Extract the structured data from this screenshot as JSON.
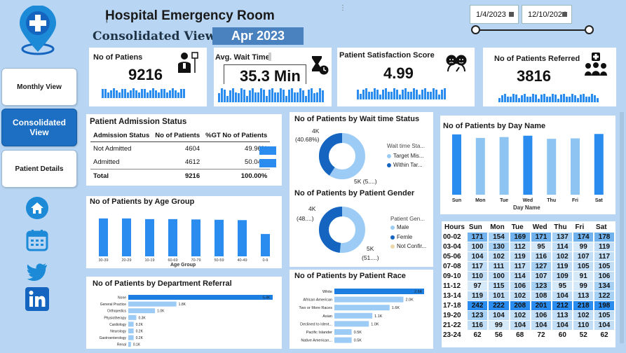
{
  "header": {
    "title": "Hospital Emergency Room",
    "subtitle": "Consolidated View",
    "month": "Apr 2023",
    "date_start": "1/4/2023",
    "date_end": "12/10/2024"
  },
  "nav": {
    "monthly": "Monthly View",
    "consolidated": "Consolidated View",
    "details": "Patient Details"
  },
  "kpis": {
    "patients": {
      "label": "No of Patiens",
      "value": "9216"
    },
    "wait": {
      "label": "Avg. Wait Time",
      "value": "35.3 Min"
    },
    "satisfaction": {
      "label": "Patient Satisfaction Score",
      "value": "4.99"
    },
    "referred": {
      "label": "No of Patients Referred",
      "value": "3816"
    }
  },
  "admission": {
    "title": "Patient Admission Status",
    "headers": [
      "Admission Status",
      "No of Patients",
      "%GT No of Patients"
    ],
    "rows": [
      {
        "status": "Not Admitted",
        "count": "4604",
        "pct": "49.96%"
      },
      {
        "status": "Admitted",
        "count": "4612",
        "pct": "50.04%"
      }
    ],
    "total": {
      "status": "Total",
      "count": "9216",
      "pct": "100.00%"
    }
  },
  "wait_status": {
    "title": "No of Patients by Wait time Status",
    "label_a": "4K",
    "label_a2": "(40.68%)",
    "label_b": "5K (5....)",
    "legend_title": "Wait time Sta...",
    "legend": [
      "Target Mis...",
      "Within Tar..."
    ]
  },
  "gender": {
    "title": "No of Patients by Patient Gender",
    "label_a": "4K",
    "label_a2": "(48....)",
    "label_b": "5K",
    "label_b2": "(51....)",
    "legend_title": "Patient Gen...",
    "legend": [
      "Male",
      "Femle",
      "Not Confir..."
    ]
  },
  "age": {
    "title": "No of Patients by Age Group",
    "xlabel": "Age Group"
  },
  "race": {
    "title": "No of Patients by Patient Race"
  },
  "dept": {
    "title": "No of Patients by Department Referral"
  },
  "day": {
    "title": "No of Patients by Day Name",
    "xlabel": "Day Name"
  },
  "heatmap": {
    "header": [
      "Hours",
      "Sun",
      "Mon",
      "Tue",
      "Wed",
      "Thu",
      "Fri",
      "Sat"
    ],
    "rows": [
      [
        "00-02",
        171,
        154,
        169,
        171,
        137,
        174,
        178
      ],
      [
        "03-04",
        100,
        130,
        112,
        95,
        114,
        99,
        119
      ],
      [
        "05-06",
        104,
        102,
        119,
        116,
        102,
        107,
        117
      ],
      [
        "07-08",
        117,
        111,
        117,
        127,
        119,
        105,
        105
      ],
      [
        "09-10",
        110,
        100,
        114,
        107,
        109,
        91,
        106
      ],
      [
        "11-12",
        97,
        115,
        106,
        123,
        95,
        99,
        134
      ],
      [
        "13-14",
        119,
        101,
        102,
        108,
        104,
        113,
        122
      ],
      [
        "17-18",
        242,
        222,
        208,
        201,
        212,
        218,
        198
      ],
      [
        "19-20",
        123,
        104,
        102,
        106,
        113,
        102,
        105
      ],
      [
        "21-22",
        116,
        99,
        104,
        104,
        104,
        110,
        104
      ],
      [
        "23-24",
        62,
        56,
        68,
        72,
        60,
        52,
        62
      ]
    ]
  },
  "colors": {
    "accent": "#2b8cf0",
    "dark_blue": "#1565c0",
    "light_blue": "#9cccf5",
    "sidebar": "#b8d6f3"
  },
  "chart_data": [
    {
      "type": "bar",
      "title": "No of Patients by Age Group",
      "xlabel": "Age Group",
      "categories": [
        "30-39",
        "20-29",
        "10-19",
        "60-69",
        "70-79",
        "50-59",
        "40-49",
        "0-9"
      ],
      "values": [
        1120,
        1120,
        1100,
        1100,
        1090,
        1080,
        1070,
        660
      ]
    },
    {
      "type": "bar",
      "orientation": "horizontal",
      "title": "No of Patients by Patient Race",
      "categories": [
        "White",
        "African American",
        "Two or More Races",
        "Asian",
        "Declined to Ident...",
        "Pacific Islander",
        "Native American..."
      ],
      "values": [
        2.6,
        2.0,
        1.6,
        1.1,
        1.0,
        0.5,
        0.5
      ],
      "value_labels": [
        "2.6K",
        "2.0K",
        "1.6K",
        "1.1K",
        "1.0K",
        "0.5K",
        "0.5K"
      ]
    },
    {
      "type": "bar",
      "orientation": "horizontal",
      "title": "No of Patients by Department Referral",
      "categories": [
        "None",
        "General Practice",
        "Orthopedics",
        "Physiotherapy",
        "Cardiology",
        "Neurology",
        "Gastroenterology",
        "Renal"
      ],
      "values": [
        5.4,
        1.8,
        1.0,
        0.3,
        0.2,
        0.2,
        0.2,
        0.1
      ],
      "value_labels": [
        "5.4K",
        "1.8K",
        "1.0K",
        "0.3K",
        "0.2K",
        "0.2K",
        "0.2K",
        "0.1K"
      ]
    },
    {
      "type": "bar",
      "title": "No of Patients by Day Name",
      "xlabel": "Day Name",
      "categories": [
        "Sun",
        "Mon",
        "Tue",
        "Wed",
        "Thu",
        "Fri",
        "Sat"
      ],
      "values": [
        1370,
        1290,
        1310,
        1340,
        1270,
        1280,
        1380
      ]
    },
    {
      "type": "pie",
      "title": "No of Patients by Wait time Status",
      "categories": [
        "Target Mis...",
        "Within Tar..."
      ],
      "values": [
        59.32,
        40.68
      ]
    },
    {
      "type": "pie",
      "title": "No of Patients by Patient Gender",
      "categories": [
        "Male",
        "Femle",
        "Not Confir..."
      ],
      "values": [
        51.5,
        48.3,
        0.2
      ]
    }
  ]
}
